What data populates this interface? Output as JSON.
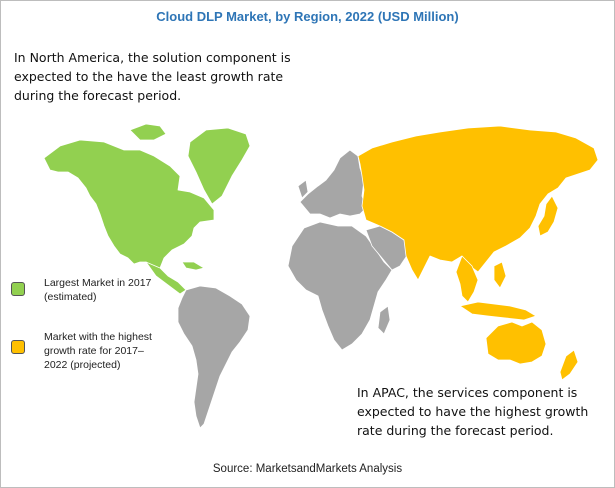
{
  "title": "Cloud DLP Market, by Region, 2022 (USD Million)",
  "notes": {
    "north_america": "In North America, the solution component is expected to the have the least growth rate during the forecast period.",
    "apac": "In APAC, the services component is expected to have the highest growth rate during the forecast period."
  },
  "legend": [
    {
      "label": "Largest Market in 2017 (estimated)",
      "color": "#92d050"
    },
    {
      "label": "Market with the highest growth rate for 2017–2022 (projected)",
      "color": "#ffc000"
    }
  ],
  "regions": {
    "north_america": {
      "status": "Largest Market in 2017 (estimated)",
      "color": "#92d050"
    },
    "asia_pacific": {
      "status": "Market with the highest growth rate for 2017–2022 (projected)",
      "color": "#ffc000"
    },
    "other_regions_color": "#a6a6a6"
  },
  "source": "Source: MarketsandMarkets Analysis"
}
